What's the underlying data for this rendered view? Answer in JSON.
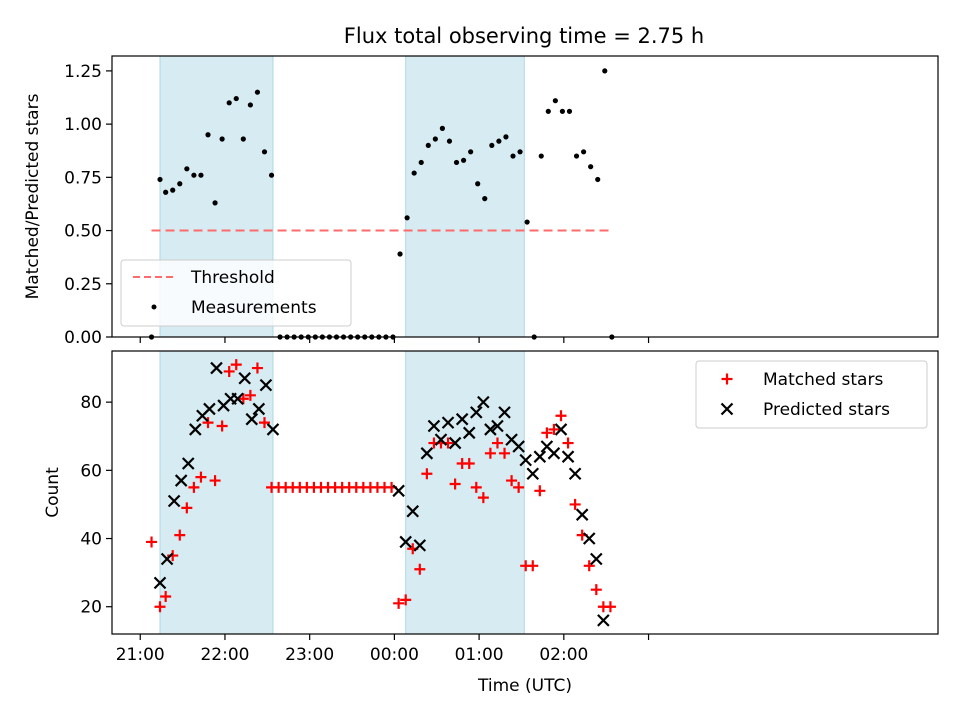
{
  "figure": {
    "title": "Flux total observing time = 2.75 h"
  },
  "chart_data": [
    {
      "type": "scatter",
      "ylabel": "Matched/Predicted stars",
      "xlabel": "",
      "x_unit": "minutes_since_21:00_UTC",
      "xlim": [
        -20,
        565
      ],
      "ylim": [
        0.0,
        1.32
      ],
      "yticks": [
        0.0,
        0.25,
        0.5,
        0.75,
        1.0,
        1.25
      ],
      "ytick_labels": [
        "0.00",
        "0.25",
        "0.50",
        "0.75",
        "1.00",
        "1.25"
      ],
      "xticks": [
        0,
        60,
        120,
        180,
        240,
        300,
        360
      ],
      "xtick_labels": [
        "",
        "",
        "",
        "",
        "",
        "",
        ""
      ],
      "grid": false,
      "legend_position": "lower-left",
      "shaded_intervals": [
        [
          14,
          94
        ],
        [
          188,
          272
        ]
      ],
      "threshold": {
        "name": "Threshold",
        "value": 0.5,
        "x_range": [
          8,
          332
        ],
        "color": "#ff6b6b"
      },
      "series": [
        {
          "name": "Measurements",
          "color": "#000000",
          "marker": "dot",
          "points": [
            [
              8,
              0.0
            ],
            [
              14,
              0.74
            ],
            [
              18,
              0.68
            ],
            [
              23,
              0.69
            ],
            [
              28,
              0.72
            ],
            [
              33,
              0.79
            ],
            [
              38,
              0.76
            ],
            [
              43,
              0.76
            ],
            [
              48,
              0.95
            ],
            [
              53,
              0.63
            ],
            [
              58,
              0.93
            ],
            [
              63,
              1.1
            ],
            [
              68,
              1.12
            ],
            [
              73,
              0.93
            ],
            [
              78,
              1.09
            ],
            [
              83,
              1.15
            ],
            [
              88,
              0.87
            ],
            [
              93,
              0.76
            ],
            [
              99,
              0.0
            ],
            [
              104,
              0.0
            ],
            [
              109,
              0.0
            ],
            [
              114,
              0.0
            ],
            [
              119,
              0.0
            ],
            [
              124,
              0.0
            ],
            [
              129,
              0.0
            ],
            [
              134,
              0.0
            ],
            [
              139,
              0.0
            ],
            [
              144,
              0.0
            ],
            [
              149,
              0.0
            ],
            [
              154,
              0.0
            ],
            [
              159,
              0.0
            ],
            [
              164,
              0.0
            ],
            [
              169,
              0.0
            ],
            [
              174,
              0.0
            ],
            [
              179,
              0.0
            ],
            [
              184,
              0.39
            ],
            [
              189,
              0.56
            ],
            [
              194,
              0.77
            ],
            [
              199,
              0.82
            ],
            [
              204,
              0.9
            ],
            [
              209,
              0.93
            ],
            [
              214,
              0.98
            ],
            [
              219,
              0.92
            ],
            [
              224,
              0.82
            ],
            [
              229,
              0.83
            ],
            [
              234,
              0.87
            ],
            [
              239,
              0.72
            ],
            [
              244,
              0.65
            ],
            [
              249,
              0.9
            ],
            [
              254,
              0.92
            ],
            [
              259,
              0.94
            ],
            [
              264,
              0.85
            ],
            [
              269,
              0.87
            ],
            [
              274,
              0.54
            ],
            [
              279,
              0.0
            ],
            [
              284,
              0.85
            ],
            [
              289,
              1.06
            ],
            [
              294,
              1.11
            ],
            [
              299,
              1.06
            ],
            [
              304,
              1.06
            ],
            [
              309,
              0.85
            ],
            [
              314,
              0.87
            ],
            [
              319,
              0.8
            ],
            [
              324,
              0.74
            ],
            [
              329,
              1.25
            ],
            [
              334,
              0.0
            ]
          ]
        }
      ]
    },
    {
      "type": "scatter",
      "ylabel": "Count",
      "xlabel": "Time (UTC)",
      "x_unit": "minutes_since_21:00_UTC",
      "xlim": [
        -20,
        565
      ],
      "ylim": [
        12,
        95
      ],
      "yticks": [
        20,
        40,
        60,
        80
      ],
      "ytick_labels": [
        "20",
        "40",
        "60",
        "80"
      ],
      "xticks": [
        0,
        60,
        120,
        180,
        240,
        300,
        360
      ],
      "xtick_labels": [
        "21:00",
        "22:00",
        "23:00",
        "00:00",
        "01:00",
        "02:00",
        ""
      ],
      "grid": false,
      "legend_position": "upper-right",
      "shaded_intervals": [
        [
          14,
          94
        ],
        [
          188,
          272
        ]
      ],
      "series": [
        {
          "name": "Matched stars",
          "color": "#ff0000",
          "marker": "plus",
          "points": [
            [
              8,
              39
            ],
            [
              14,
              20
            ],
            [
              18,
              23
            ],
            [
              23,
              35
            ],
            [
              28,
              41
            ],
            [
              33,
              49
            ],
            [
              38,
              55
            ],
            [
              43,
              58
            ],
            [
              48,
              74
            ],
            [
              53,
              57
            ],
            [
              58,
              73
            ],
            [
              63,
              89
            ],
            [
              68,
              91
            ],
            [
              73,
              81
            ],
            [
              78,
              82
            ],
            [
              83,
              90
            ],
            [
              88,
              74
            ],
            [
              93,
              55
            ],
            [
              98,
              55
            ],
            [
              103,
              55
            ],
            [
              108,
              55
            ],
            [
              113,
              55
            ],
            [
              118,
              55
            ],
            [
              123,
              55
            ],
            [
              128,
              55
            ],
            [
              133,
              55
            ],
            [
              138,
              55
            ],
            [
              143,
              55
            ],
            [
              148,
              55
            ],
            [
              153,
              55
            ],
            [
              158,
              55
            ],
            [
              163,
              55
            ],
            [
              168,
              55
            ],
            [
              173,
              55
            ],
            [
              178,
              55
            ],
            [
              183,
              21
            ],
            [
              188,
              22
            ],
            [
              193,
              37
            ],
            [
              198,
              31
            ],
            [
              203,
              59
            ],
            [
              208,
              68
            ],
            [
              213,
              68
            ],
            [
              218,
              68
            ],
            [
              223,
              56
            ],
            [
              228,
              62
            ],
            [
              233,
              62
            ],
            [
              238,
              55
            ],
            [
              243,
              52
            ],
            [
              248,
              65
            ],
            [
              253,
              68
            ],
            [
              258,
              65
            ],
            [
              263,
              57
            ],
            [
              268,
              55
            ],
            [
              273,
              32
            ],
            [
              278,
              32
            ],
            [
              283,
              54
            ],
            [
              288,
              71
            ],
            [
              293,
              72
            ],
            [
              298,
              76
            ],
            [
              303,
              68
            ],
            [
              308,
              50
            ],
            [
              313,
              41
            ],
            [
              318,
              32
            ],
            [
              323,
              25
            ],
            [
              328,
              20
            ],
            [
              333,
              20
            ]
          ]
        },
        {
          "name": "Predicted stars",
          "color": "#000000",
          "marker": "x",
          "points": [
            [
              14,
              27
            ],
            [
              19,
              34
            ],
            [
              24,
              51
            ],
            [
              29,
              57
            ],
            [
              34,
              62
            ],
            [
              39,
              72
            ],
            [
              44,
              76
            ],
            [
              49,
              78
            ],
            [
              54,
              90
            ],
            [
              59,
              79
            ],
            [
              64,
              81
            ],
            [
              69,
              81
            ],
            [
              74,
              87
            ],
            [
              79,
              75
            ],
            [
              84,
              78
            ],
            [
              89,
              85
            ],
            [
              94,
              72
            ],
            [
              183,
              54
            ],
            [
              188,
              39
            ],
            [
              193,
              48
            ],
            [
              198,
              38
            ],
            [
              203,
              65
            ],
            [
              208,
              73
            ],
            [
              213,
              69
            ],
            [
              218,
              74
            ],
            [
              223,
              68
            ],
            [
              228,
              75
            ],
            [
              233,
              71
            ],
            [
              238,
              77
            ],
            [
              243,
              80
            ],
            [
              248,
              72
            ],
            [
              253,
              73
            ],
            [
              258,
              77
            ],
            [
              263,
              69
            ],
            [
              268,
              67
            ],
            [
              273,
              63
            ],
            [
              278,
              59
            ],
            [
              283,
              64
            ],
            [
              288,
              67
            ],
            [
              293,
              65
            ],
            [
              298,
              72
            ],
            [
              303,
              64
            ],
            [
              308,
              59
            ],
            [
              313,
              47
            ],
            [
              318,
              40
            ],
            [
              323,
              34
            ],
            [
              328,
              16
            ]
          ]
        }
      ]
    }
  ]
}
